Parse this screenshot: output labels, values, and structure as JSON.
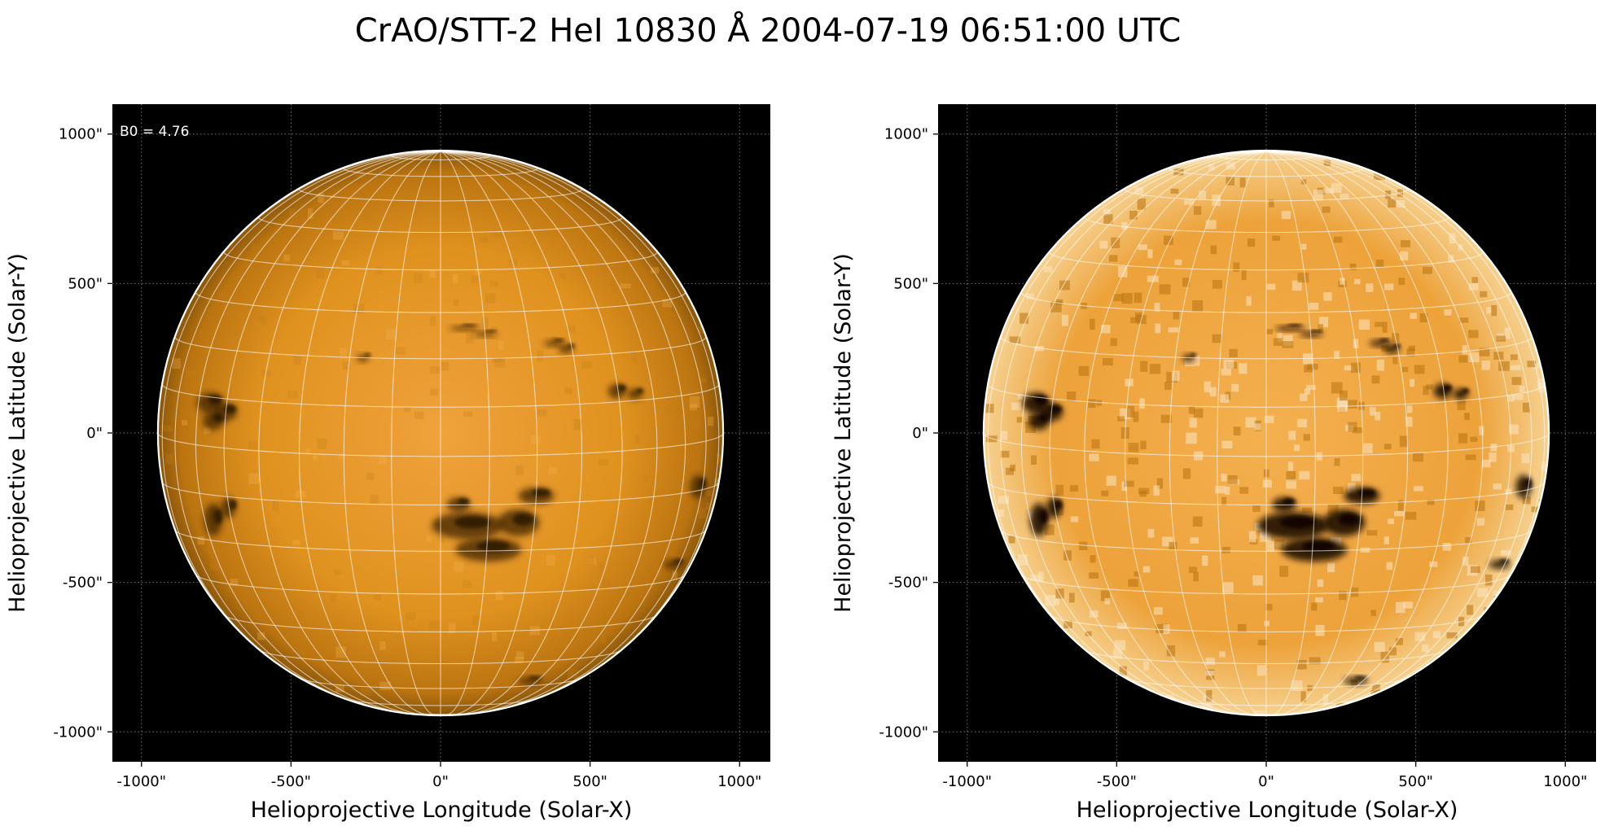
{
  "figure": {
    "title": "CrAO/STT-2 HeI 10830 Å 2004-07-19 06:51:00 UTC"
  },
  "colors": {
    "background": "#000000",
    "disk_bright": "#f2a640",
    "disk_mid": "#d98b1c",
    "disk_dark": "#6e4208",
    "limb_outline": "#ffffff",
    "grid": "#ffffff"
  },
  "axes": {
    "tick_values": [
      -1000,
      -500,
      0,
      500,
      1000
    ],
    "tick_labels": [
      "-1000\"",
      "-500\"",
      "0\"",
      "500\"",
      "1000\""
    ],
    "xlabel": "Helioprojective Longitude (Solar-X)",
    "ylabel": "Helioprojective Latitude (Solar-Y)",
    "range_arcsec": [
      -1100,
      1100
    ]
  },
  "panels": [
    {
      "annotation": "B0 = 4.76",
      "contrast": "normal"
    },
    {
      "annotation": "",
      "contrast": "enhanced"
    }
  ],
  "sun": {
    "radius_arcsec": 945,
    "b0_deg": 4.76,
    "grid_step_deg": 10
  }
}
